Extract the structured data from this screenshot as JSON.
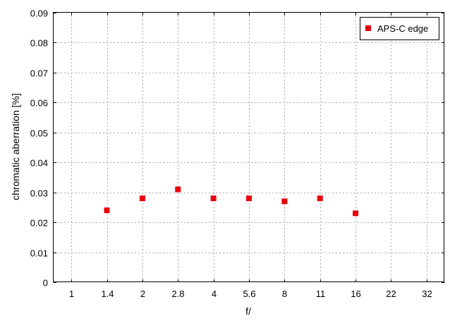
{
  "chart_data": {
    "type": "scatter",
    "title": "",
    "xlabel": "f/",
    "ylabel": "chromatic aberration [%]",
    "categories": [
      "1",
      "1.4",
      "2",
      "2.8",
      "4",
      "5.6",
      "8",
      "11",
      "16",
      "22",
      "32"
    ],
    "ylim": [
      0,
      0.09
    ],
    "yticks": [
      "0",
      "0.01",
      "0.02",
      "0.03",
      "0.04",
      "0.05",
      "0.06",
      "0.07",
      "0.08",
      "0.09"
    ],
    "grid": true,
    "legend_position": "top-right",
    "series": [
      {
        "name": "APS-C edge",
        "color": "#e8000b",
        "marker": "square",
        "points": [
          {
            "x": "1.4",
            "y": 0.024
          },
          {
            "x": "2",
            "y": 0.028
          },
          {
            "x": "2.8",
            "y": 0.031
          },
          {
            "x": "4",
            "y": 0.028
          },
          {
            "x": "5.6",
            "y": 0.028
          },
          {
            "x": "8",
            "y": 0.027
          },
          {
            "x": "11",
            "y": 0.028
          },
          {
            "x": "16",
            "y": 0.023
          }
        ]
      }
    ]
  }
}
